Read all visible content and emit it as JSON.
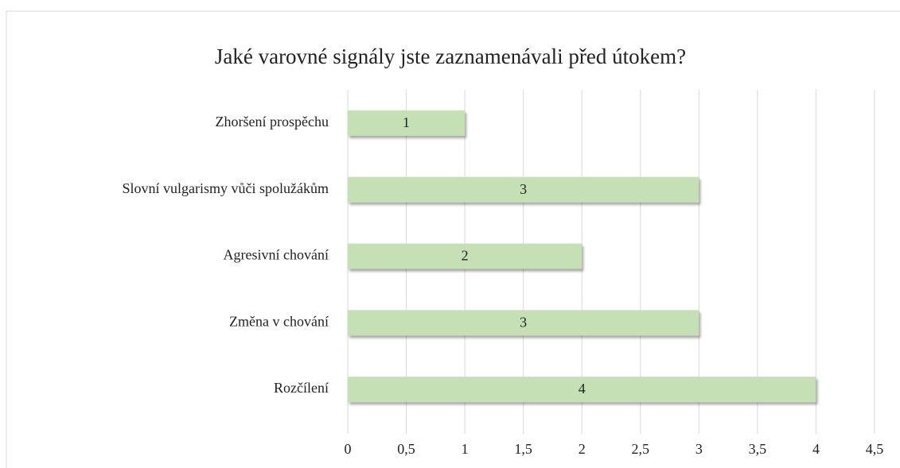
{
  "chart_data": {
    "type": "bar",
    "orientation": "horizontal",
    "title": "Jaké varovné signály jste zaznamenávali před útokem?",
    "categories": [
      "Zhoršení prospěchu",
      "Slovní vulgarismy vůči spolužákům",
      "Agresivní chování",
      "Změna v chování",
      "Rozčílení"
    ],
    "values": [
      1,
      3,
      2,
      3,
      4
    ],
    "color": "#c5e0b4",
    "xlim": [
      0,
      4.5
    ],
    "xticks": [
      0,
      {
        "value": 0.5,
        "label": "0,5"
      },
      1,
      {
        "value": 1.5,
        "label": "1,5"
      },
      2,
      {
        "value": 2.5,
        "label": "2,5"
      },
      3,
      {
        "value": 3.5,
        "label": "3,5"
      },
      4,
      {
        "value": 4.5,
        "label": "4,5"
      }
    ],
    "grid": true
  }
}
